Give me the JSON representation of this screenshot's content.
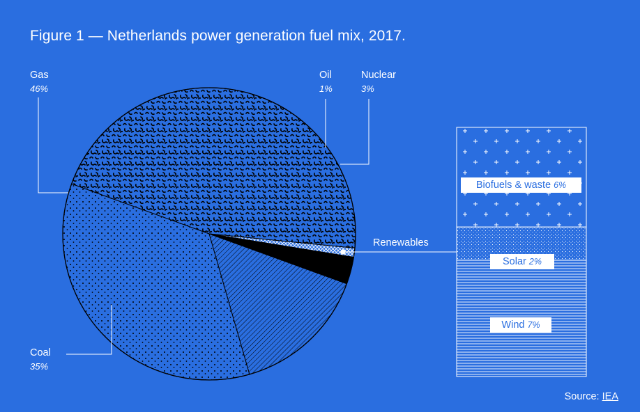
{
  "colors": {
    "background": "#2a6ee0",
    "ink": "#000000",
    "paper": "#ffffff"
  },
  "chart_data": {
    "type": "pie",
    "title": "Figure 1 — Netherlands power generation fuel mix, 2017.",
    "slices": [
      {
        "name": "Gas",
        "value": 46,
        "pct_label": "46%",
        "pattern": "squiggle"
      },
      {
        "name": "Oil",
        "value": 1,
        "pct_label": "1%",
        "pattern": "crosshatch"
      },
      {
        "name": "Nuclear",
        "value": 3,
        "pct_label": "3%",
        "pattern": "solid-black"
      },
      {
        "name": "Renewables",
        "value": 15,
        "pct_label": "",
        "pattern": "diagonal-lines"
      },
      {
        "name": "Coal",
        "value": 35,
        "pct_label": "35%",
        "pattern": "dots"
      }
    ],
    "breakdown": {
      "parent": "Renewables",
      "items": [
        {
          "name": "Biofuels & waste",
          "value": 6,
          "pct_label": "6%",
          "pattern": "plus"
        },
        {
          "name": "Solar",
          "value": 2,
          "pct_label": "2%",
          "pattern": "fine-dots"
        },
        {
          "name": "Wind",
          "value": 7,
          "pct_label": "7%",
          "pattern": "horizontal-lines"
        }
      ]
    }
  },
  "source": {
    "prefix": "Source:",
    "link": "IEA"
  }
}
